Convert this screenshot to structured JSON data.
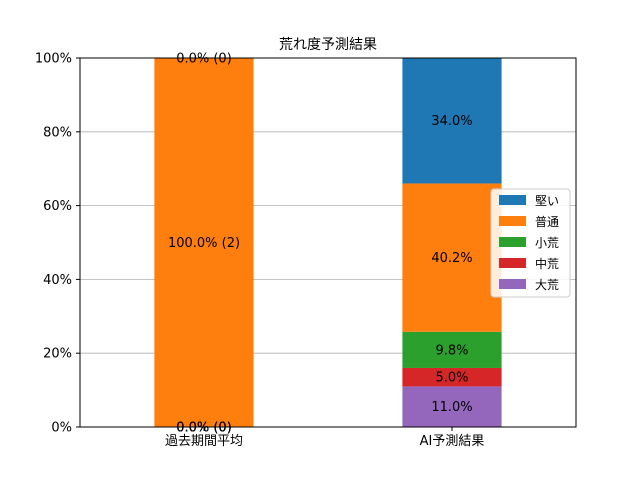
{
  "chart_data": {
    "type": "bar",
    "stacked": true,
    "percent_stacked": true,
    "title": "荒れ度予測結果",
    "xlabel": "",
    "ylabel": "",
    "ylim": [
      0,
      100
    ],
    "yticks": [
      "0%",
      "20%",
      "40%",
      "60%",
      "80%",
      "100%"
    ],
    "grid": "horizontal",
    "legend_position": "right",
    "categories": [
      "過去期間平均",
      "AI予測結果"
    ],
    "series": [
      {
        "name": "大荒",
        "color": "#9467bd",
        "values": [
          0.0,
          11.0
        ],
        "labels": [
          "0.0% (0)",
          "11.0%"
        ]
      },
      {
        "name": "中荒",
        "color": "#d62728",
        "values": [
          0.0,
          5.0
        ],
        "labels": [
          "0.0% (0)",
          "5.0%"
        ]
      },
      {
        "name": "小荒",
        "color": "#2ca02c",
        "values": [
          0.0,
          9.8
        ],
        "labels": [
          "0.0% (0)",
          "9.8%"
        ]
      },
      {
        "name": "普通",
        "color": "#ff7f0e",
        "values": [
          100.0,
          40.2
        ],
        "labels": [
          "100.0% (2)",
          "40.2%"
        ]
      },
      {
        "name": "堅い",
        "color": "#1f77b4",
        "values": [
          0.0,
          34.0
        ],
        "labels": [
          "0.0% (0)",
          "34.0%"
        ]
      }
    ],
    "legend_order": [
      "堅い",
      "普通",
      "小荒",
      "中荒",
      "大荒"
    ]
  }
}
